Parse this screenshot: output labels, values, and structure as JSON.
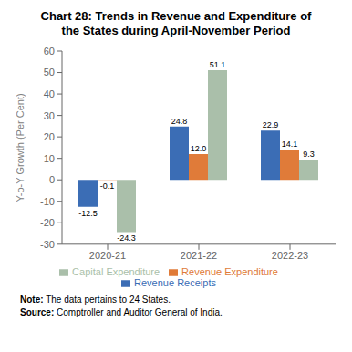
{
  "chart_data": {
    "type": "bar",
    "title": "Chart 28: Trends in Revenue and Expenditure of\nthe States during April-November Period",
    "ylabel": "Y-o-Y Growth (Per Cent)",
    "categories": [
      "2020-21",
      "2021-22",
      "2022-23"
    ],
    "series": [
      {
        "name": "Revenue Receipts",
        "color": "#3B6DB5",
        "values": [
          -12.5,
          24.8,
          22.9
        ],
        "value_labels": [
          "-12.5",
          "24.8",
          "22.9"
        ]
      },
      {
        "name": "Revenue Expenditure",
        "color": "#E07B39",
        "values": [
          -0.1,
          12.0,
          14.1
        ],
        "value_labels": [
          "-0.1",
          "12.0",
          "14.1"
        ]
      },
      {
        "name": "Capital Expenditure",
        "color": "#AABFAA",
        "values": [
          -24.3,
          51.1,
          9.3
        ],
        "value_labels": [
          "-24.3",
          "51.1",
          "9.3"
        ]
      }
    ],
    "ylim": [
      -30,
      60
    ],
    "yticks": [
      -30,
      -20,
      -10,
      0,
      10,
      20,
      30,
      40,
      50,
      60
    ],
    "grid": false,
    "legend": "bottom",
    "data_labels": true,
    "annotations": [
      {
        "bold": "Note:",
        "text": " The data pertains to 24 States."
      },
      {
        "bold": "Source:",
        "text": " Comptroller and Auditor General of India."
      }
    ]
  }
}
